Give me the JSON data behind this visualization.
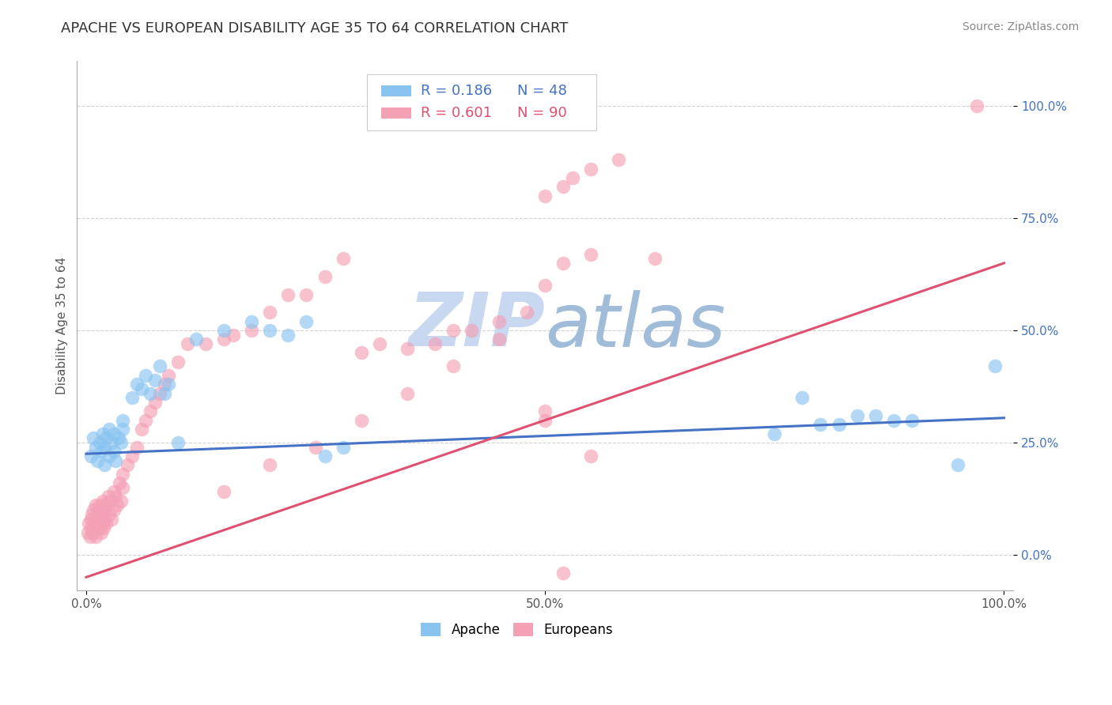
{
  "title": "APACHE VS EUROPEAN DISABILITY AGE 35 TO 64 CORRELATION CHART",
  "source": "Source: ZipAtlas.com",
  "ylabel": "Disability Age 35 to 64",
  "xlim": [
    -0.01,
    1.01
  ],
  "ylim": [
    -0.08,
    1.1
  ],
  "yticks": [
    0.0,
    0.25,
    0.5,
    0.75,
    1.0
  ],
  "ytick_labels": [
    "0.0%",
    "25.0%",
    "50.0%",
    "75.0%",
    "100.0%"
  ],
  "xticks": [
    0.0,
    0.5,
    1.0
  ],
  "xtick_labels": [
    "0.0%",
    "50.0%",
    "100.0%"
  ],
  "apache_R": 0.186,
  "apache_N": 48,
  "european_R": 0.601,
  "european_N": 90,
  "apache_color": "#89C4F0",
  "european_color": "#F4A0B5",
  "apache_line_color": "#4472C4",
  "european_line_color": "#E05070",
  "background_color": "#ffffff",
  "grid_color": "#cccccc",
  "apache_trendline_x": [
    0.0,
    1.0
  ],
  "apache_trendline_y": [
    0.225,
    0.305
  ],
  "european_trendline_x": [
    0.0,
    1.0
  ],
  "european_trendline_y": [
    -0.05,
    0.65
  ],
  "title_fontsize": 13,
  "label_fontsize": 11,
  "tick_fontsize": 11,
  "source_fontsize": 10,
  "apache_x": [
    0.005,
    0.008,
    0.01,
    0.012,
    0.015,
    0.016,
    0.018,
    0.02,
    0.02,
    0.022,
    0.025,
    0.025,
    0.028,
    0.03,
    0.03,
    0.032,
    0.035,
    0.038,
    0.04,
    0.04,
    0.05,
    0.055,
    0.06,
    0.065,
    0.07,
    0.075,
    0.08,
    0.085,
    0.09,
    0.1,
    0.12,
    0.15,
    0.18,
    0.2,
    0.22,
    0.24,
    0.26,
    0.28,
    0.75,
    0.78,
    0.8,
    0.82,
    0.84,
    0.86,
    0.88,
    0.9,
    0.95,
    0.99
  ],
  "apache_y": [
    0.22,
    0.26,
    0.24,
    0.21,
    0.25,
    0.23,
    0.27,
    0.24,
    0.2,
    0.26,
    0.22,
    0.28,
    0.25,
    0.23,
    0.27,
    0.21,
    0.26,
    0.25,
    0.3,
    0.28,
    0.35,
    0.38,
    0.37,
    0.4,
    0.36,
    0.39,
    0.42,
    0.36,
    0.38,
    0.25,
    0.48,
    0.5,
    0.52,
    0.5,
    0.49,
    0.52,
    0.22,
    0.24,
    0.27,
    0.35,
    0.29,
    0.29,
    0.31,
    0.31,
    0.3,
    0.3,
    0.2,
    0.42
  ],
  "european_x": [
    0.002,
    0.003,
    0.004,
    0.005,
    0.005,
    0.006,
    0.007,
    0.008,
    0.008,
    0.009,
    0.01,
    0.01,
    0.01,
    0.012,
    0.012,
    0.013,
    0.014,
    0.015,
    0.015,
    0.016,
    0.017,
    0.018,
    0.018,
    0.019,
    0.02,
    0.02,
    0.022,
    0.022,
    0.024,
    0.025,
    0.026,
    0.028,
    0.03,
    0.03,
    0.032,
    0.034,
    0.036,
    0.038,
    0.04,
    0.04,
    0.045,
    0.05,
    0.055,
    0.06,
    0.065,
    0.07,
    0.075,
    0.08,
    0.085,
    0.09,
    0.1,
    0.11,
    0.13,
    0.15,
    0.16,
    0.18,
    0.2,
    0.22,
    0.24,
    0.26,
    0.28,
    0.3,
    0.32,
    0.35,
    0.38,
    0.4,
    0.42,
    0.45,
    0.48,
    0.5,
    0.52,
    0.55,
    0.5,
    0.52,
    0.53,
    0.55,
    0.58,
    0.62,
    0.15,
    0.2,
    0.25,
    0.3,
    0.35,
    0.4,
    0.45,
    0.5,
    0.5,
    0.55,
    0.97,
    0.52
  ],
  "european_y": [
    0.05,
    0.07,
    0.04,
    0.08,
    0.06,
    0.09,
    0.05,
    0.07,
    0.1,
    0.06,
    0.08,
    0.11,
    0.04,
    0.09,
    0.07,
    0.1,
    0.06,
    0.08,
    0.11,
    0.05,
    0.09,
    0.07,
    0.12,
    0.06,
    0.1,
    0.08,
    0.11,
    0.07,
    0.13,
    0.09,
    0.12,
    0.08,
    0.14,
    0.1,
    0.13,
    0.11,
    0.16,
    0.12,
    0.18,
    0.15,
    0.2,
    0.22,
    0.24,
    0.28,
    0.3,
    0.32,
    0.34,
    0.36,
    0.38,
    0.4,
    0.43,
    0.47,
    0.47,
    0.48,
    0.49,
    0.5,
    0.54,
    0.58,
    0.58,
    0.62,
    0.66,
    0.45,
    0.47,
    0.46,
    0.47,
    0.5,
    0.5,
    0.52,
    0.54,
    0.6,
    0.65,
    0.67,
    0.8,
    0.82,
    0.84,
    0.86,
    0.88,
    0.66,
    0.14,
    0.2,
    0.24,
    0.3,
    0.36,
    0.42,
    0.48,
    0.3,
    0.32,
    0.22,
    1.0,
    -0.04
  ],
  "watermark_zip_color": "#C8D8F0",
  "watermark_atlas_color": "#A0BCD8"
}
